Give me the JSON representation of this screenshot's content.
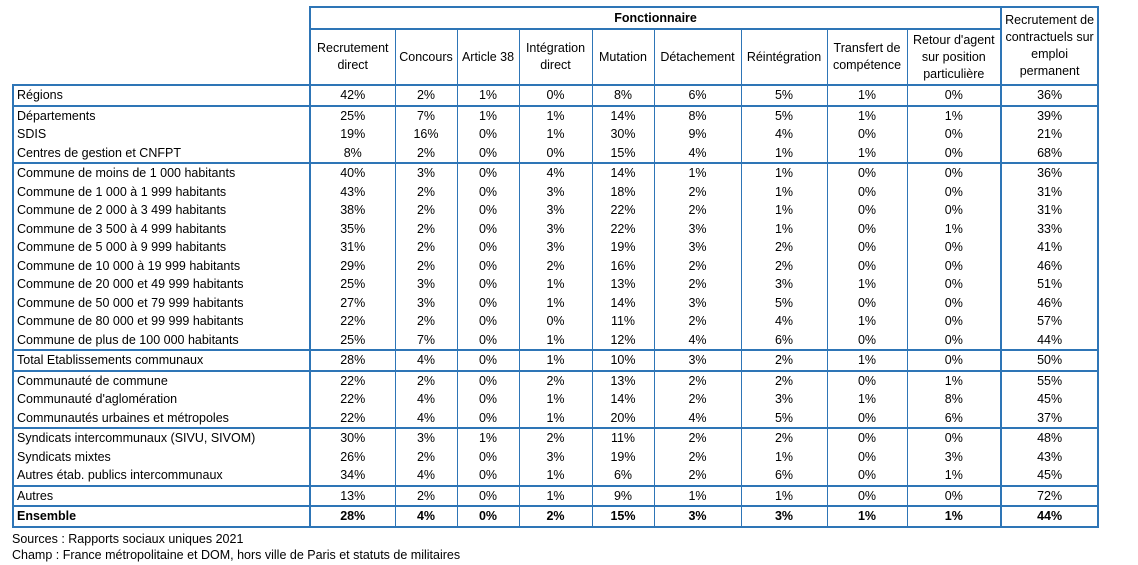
{
  "header": {
    "group_label": "Fonctionnaire",
    "columns": [
      "Recrutement direct",
      "Concours",
      "Article 38",
      "Intégration direct",
      "Mutation",
      "Détachement",
      "Réintégration",
      "Transfert de compétence",
      "Retour d'agent sur position particulière"
    ],
    "last_column": "Recrutement de contractuels sur emploi permanent"
  },
  "rows": [
    {
      "label": "Régions",
      "values": [
        "42%",
        "2%",
        "1%",
        "0%",
        "8%",
        "6%",
        "5%",
        "1%",
        "0%",
        "36%"
      ]
    },
    {
      "label": "Départements",
      "values": [
        "25%",
        "7%",
        "1%",
        "1%",
        "14%",
        "8%",
        "5%",
        "1%",
        "1%",
        "39%"
      ]
    },
    {
      "label": "SDIS",
      "values": [
        "19%",
        "16%",
        "0%",
        "1%",
        "30%",
        "9%",
        "4%",
        "0%",
        "0%",
        "21%"
      ]
    },
    {
      "label": "Centres de gestion et CNFPT",
      "values": [
        "8%",
        "2%",
        "0%",
        "0%",
        "15%",
        "4%",
        "1%",
        "1%",
        "0%",
        "68%"
      ]
    },
    {
      "label": "Commune de moins de 1 000 habitants",
      "values": [
        "40%",
        "3%",
        "0%",
        "4%",
        "14%",
        "1%",
        "1%",
        "0%",
        "0%",
        "36%"
      ]
    },
    {
      "label": "Commune de 1 000 à  1 999 habitants",
      "values": [
        "43%",
        "2%",
        "0%",
        "3%",
        "18%",
        "2%",
        "1%",
        "0%",
        "0%",
        "31%"
      ]
    },
    {
      "label": "Commune de 2 000 à 3 499 habitants",
      "values": [
        "38%",
        "2%",
        "0%",
        "3%",
        "22%",
        "2%",
        "1%",
        "0%",
        "0%",
        "31%"
      ]
    },
    {
      "label": "Commune de 3 500 à 4 999 habitants",
      "values": [
        "35%",
        "2%",
        "0%",
        "3%",
        "22%",
        "3%",
        "1%",
        "0%",
        "1%",
        "33%"
      ]
    },
    {
      "label": "Commune de 5 000 à 9 999 habitants",
      "values": [
        "31%",
        "2%",
        "0%",
        "3%",
        "19%",
        "3%",
        "2%",
        "0%",
        "0%",
        "41%"
      ]
    },
    {
      "label": "Commune de 10 000 à 19 999 habitants",
      "values": [
        "29%",
        "2%",
        "0%",
        "2%",
        "16%",
        "2%",
        "2%",
        "0%",
        "0%",
        "46%"
      ]
    },
    {
      "label": "Commune de 20 000 et 49 999 habitants",
      "values": [
        "25%",
        "3%",
        "0%",
        "1%",
        "13%",
        "2%",
        "3%",
        "1%",
        "0%",
        "51%"
      ]
    },
    {
      "label": "Commune de 50 000 et 79 999 habitants",
      "values": [
        "27%",
        "3%",
        "0%",
        "1%",
        "14%",
        "3%",
        "5%",
        "0%",
        "0%",
        "46%"
      ]
    },
    {
      "label": "Commune de 80 000 et 99 999 habitants",
      "values": [
        "22%",
        "2%",
        "0%",
        "0%",
        "11%",
        "2%",
        "4%",
        "1%",
        "0%",
        "57%"
      ]
    },
    {
      "label": "Commune de plus de 100 000 habitants",
      "values": [
        "25%",
        "7%",
        "0%",
        "1%",
        "12%",
        "4%",
        "6%",
        "0%",
        "0%",
        "44%"
      ]
    },
    {
      "label": "Total Etablissements communaux",
      "values": [
        "28%",
        "4%",
        "0%",
        "1%",
        "10%",
        "3%",
        "2%",
        "1%",
        "0%",
        "50%"
      ]
    },
    {
      "label": "Communauté de commune",
      "values": [
        "22%",
        "2%",
        "0%",
        "2%",
        "13%",
        "2%",
        "2%",
        "0%",
        "1%",
        "55%"
      ]
    },
    {
      "label": "Communauté d'aglomération",
      "values": [
        "22%",
        "4%",
        "0%",
        "1%",
        "14%",
        "2%",
        "3%",
        "1%",
        "8%",
        "45%"
      ]
    },
    {
      "label": "Communautés urbaines et métropoles",
      "values": [
        "22%",
        "4%",
        "0%",
        "1%",
        "20%",
        "4%",
        "5%",
        "0%",
        "6%",
        "37%"
      ]
    },
    {
      "label": "Syndicats intercommunaux (SIVU, SIVOM)",
      "values": [
        "30%",
        "3%",
        "1%",
        "2%",
        "11%",
        "2%",
        "2%",
        "0%",
        "0%",
        "48%"
      ]
    },
    {
      "label": "Syndicats mixtes",
      "values": [
        "26%",
        "2%",
        "0%",
        "3%",
        "19%",
        "2%",
        "1%",
        "0%",
        "3%",
        "43%"
      ]
    },
    {
      "label": "Autres étab. publics intercommunaux",
      "values": [
        "34%",
        "4%",
        "0%",
        "1%",
        "6%",
        "2%",
        "6%",
        "0%",
        "1%",
        "45%"
      ]
    },
    {
      "label": "Autres",
      "values": [
        "13%",
        "2%",
        "0%",
        "1%",
        "9%",
        "1%",
        "1%",
        "0%",
        "0%",
        "72%"
      ]
    },
    {
      "label": "Ensemble",
      "values": [
        "28%",
        "4%",
        "0%",
        "2%",
        "15%",
        "3%",
        "3%",
        "1%",
        "1%",
        "44%"
      ]
    }
  ],
  "footer": {
    "sources": "Sources : Rapports sociaux uniques 2021",
    "champ": "Champ : France métropolitaine et DOM, hors ville de Paris et statuts de militaires"
  },
  "colors": {
    "border": "#2e75b6"
  }
}
